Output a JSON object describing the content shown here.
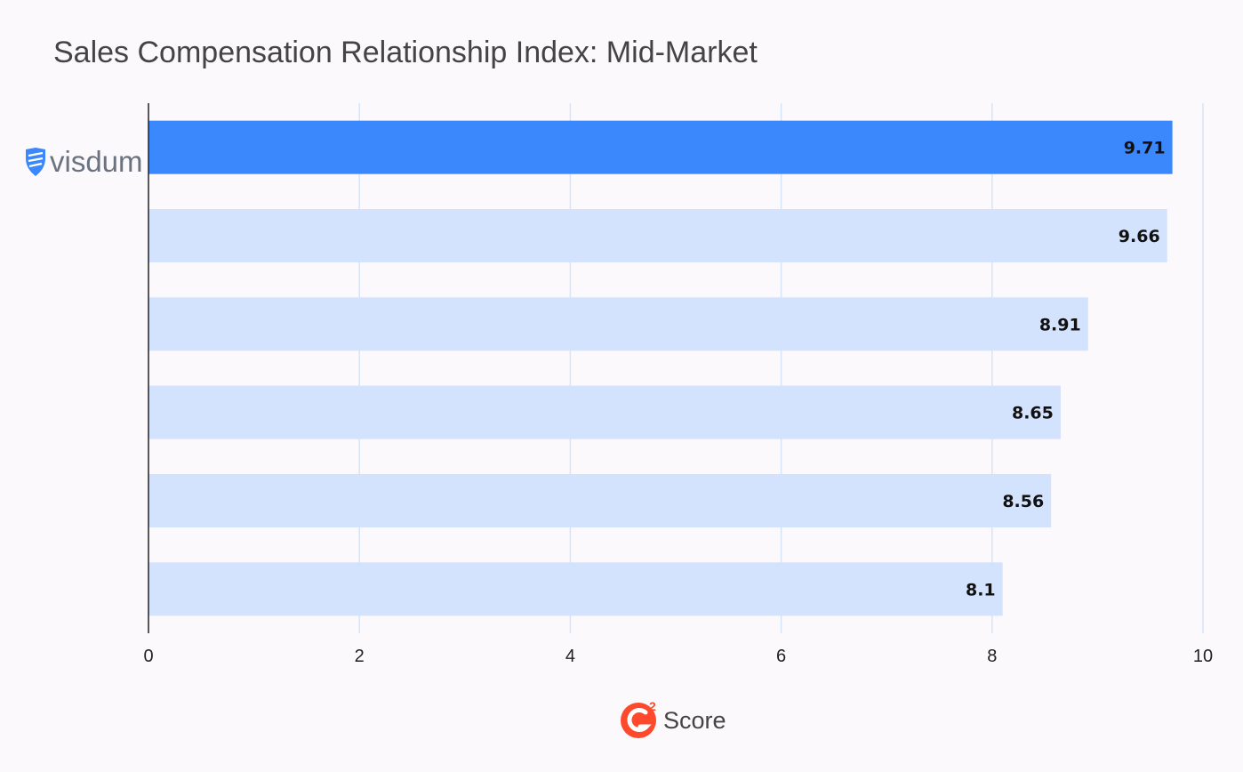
{
  "chart_data": {
    "type": "bar",
    "orientation": "horizontal",
    "title": "Sales Compensation Relationship Index: Mid-Market",
    "categories": [
      "visdum",
      "",
      "",
      "",
      "",
      ""
    ],
    "values": [
      9.71,
      9.66,
      8.91,
      8.65,
      8.56,
      8.1
    ],
    "value_labels": [
      "9.71",
      "9.66",
      "8.91",
      "8.65",
      "8.56",
      "8.1"
    ],
    "highlight_index": 0,
    "xlim": [
      0,
      10
    ],
    "xticks": [
      0,
      2,
      4,
      6,
      8,
      10
    ],
    "grid": true,
    "colors": {
      "highlight": "#3b87fc",
      "bar": "#d3e2fd",
      "grid": "#d6e4f7",
      "axis": "#222222"
    }
  },
  "logo": {
    "text": "visdum",
    "icon": "shield-icon"
  },
  "footer": {
    "badge_icon": "g2-logo-icon",
    "badge_text": "Score"
  }
}
